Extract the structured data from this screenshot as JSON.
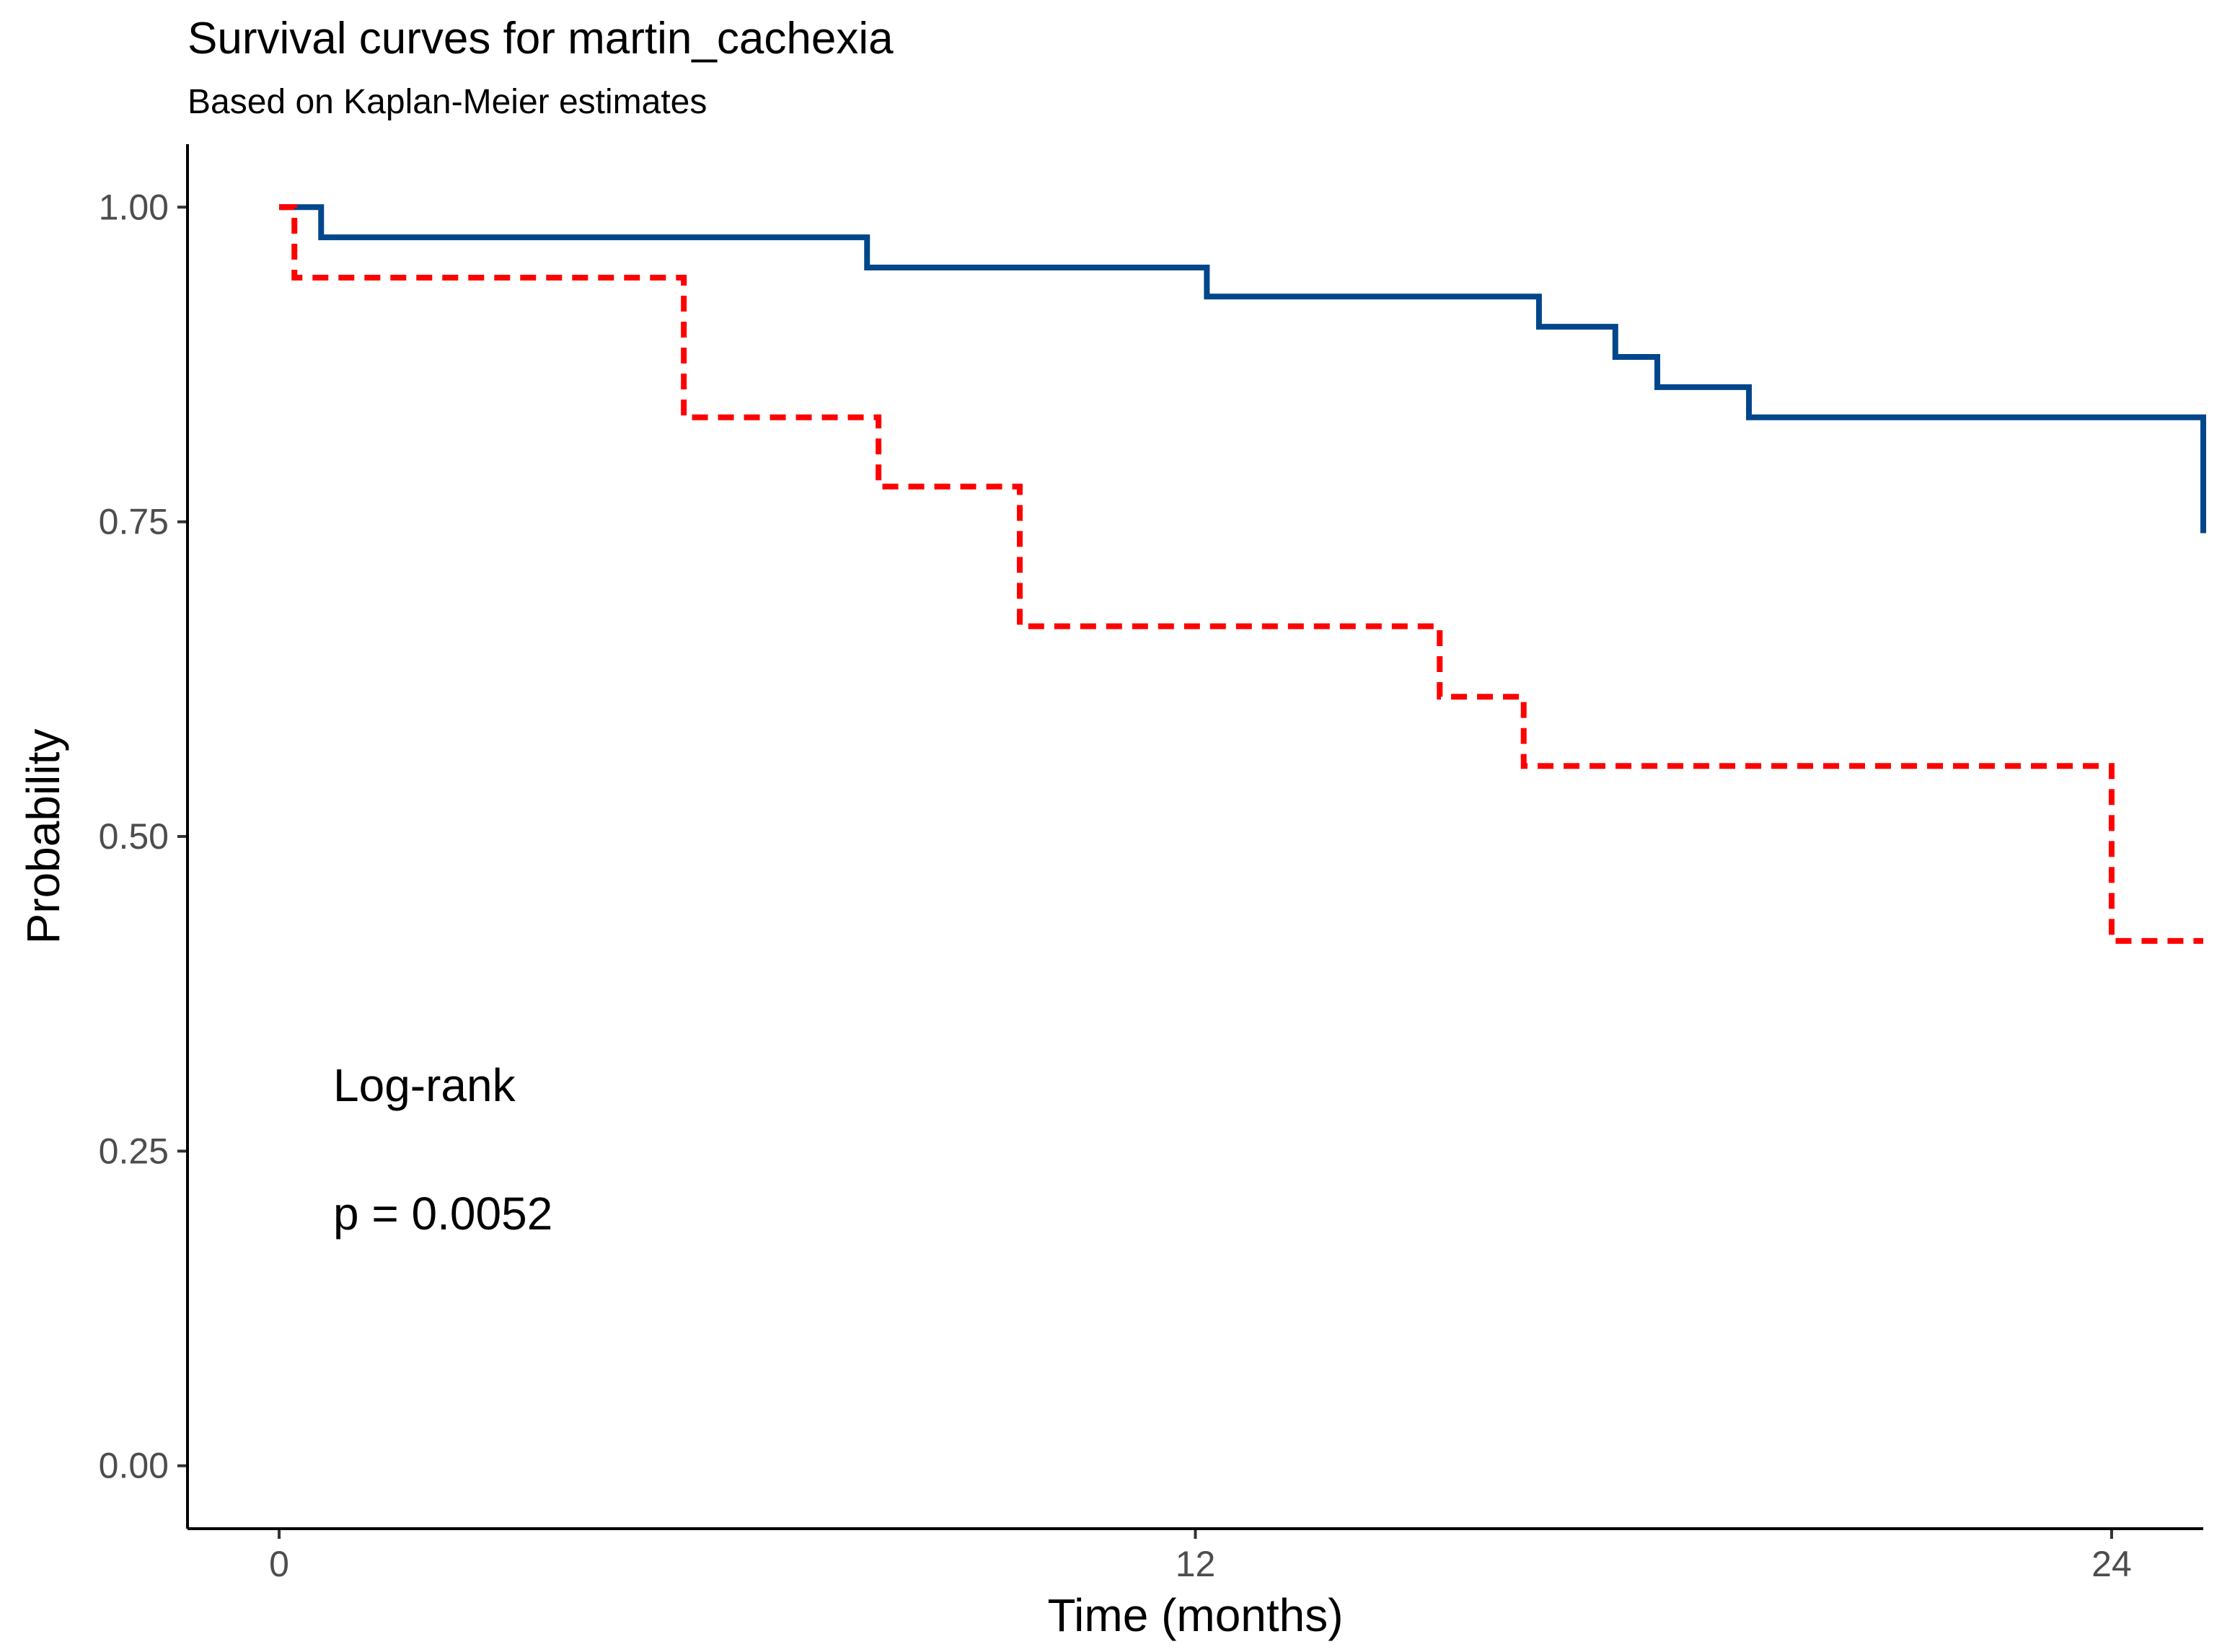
{
  "chart_data": {
    "type": "line",
    "title": "Survival curves for martin_cachexia",
    "subtitle": "Based on Kaplan-Meier estimates",
    "xlabel": "Time (months)",
    "ylabel": "Probability",
    "xlim": [
      -1.2,
      25.2
    ],
    "ylim": [
      -0.05,
      1.05
    ],
    "xticks": [
      0,
      12,
      24
    ],
    "xtick_labels": [
      "0",
      "12",
      "24"
    ],
    "yticks": [
      0,
      0.25,
      0.5,
      0.75,
      1
    ],
    "ytick_labels": [
      "0.00",
      "0.25",
      "0.50",
      "0.75",
      "1.00"
    ],
    "grid": false,
    "legend": "none",
    "annotations": [
      "Log-rank",
      "p = 0.0052"
    ],
    "series": [
      {
        "color": "#00468B",
        "line_style": "solid",
        "step": true,
        "x": [
          0,
          0.55,
          7.7,
          12.15,
          16.5,
          17.5,
          18.05,
          19.25,
          25.2
        ],
        "y": [
          1.0,
          0.976,
          0.952,
          0.929,
          0.905,
          0.881,
          0.857,
          0.833,
          0.741
        ]
      },
      {
        "color": "#FF0000",
        "line_style": "dashed",
        "step": true,
        "x": [
          0,
          0.2,
          5.3,
          7.85,
          9.7,
          15.2,
          16.3,
          24.0,
          25.2
        ],
        "y": [
          1.0,
          0.944,
          0.833,
          0.778,
          0.667,
          0.611,
          0.556,
          0.417,
          0.417
        ]
      }
    ]
  }
}
